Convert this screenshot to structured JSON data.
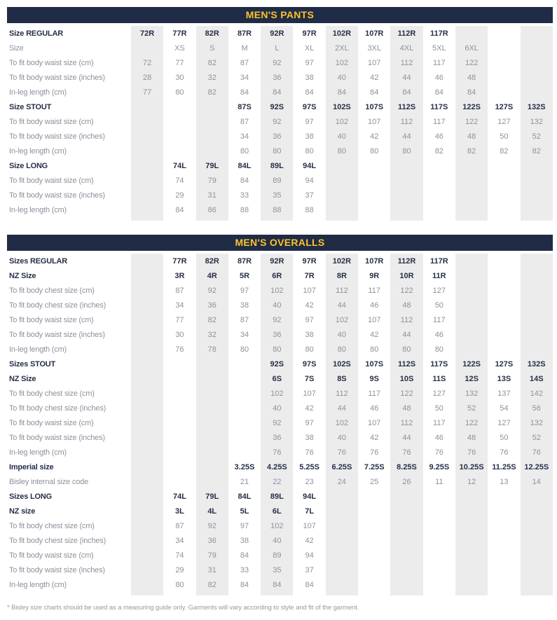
{
  "page": {
    "footnote": "* Bisley size charts should be used as a measuring guide only. Garments will vary according to style and fit of the garment."
  },
  "colors": {
    "header_bg": "#202b46",
    "header_text": "#fcc32b",
    "bold_text": "#272f48",
    "muted_text": "#8d929c",
    "column_stripe": "#ececec"
  },
  "tables": [
    {
      "title": "MEN'S PANTS",
      "rows": [
        {
          "label": "Size REGULAR",
          "bold": true,
          "cells": [
            "72R",
            "77R",
            "82R",
            "87R",
            "92R",
            "97R",
            "102R",
            "107R",
            "112R",
            "117R",
            "",
            "",
            ""
          ]
        },
        {
          "label": "Size",
          "bold": false,
          "cells": [
            "",
            "XS",
            "S",
            "M",
            "L",
            "XL",
            "2XL",
            "3XL",
            "4XL",
            "5XL",
            "6XL",
            "",
            ""
          ]
        },
        {
          "label": "To fit body waist size (cm)",
          "bold": false,
          "cells": [
            "72",
            "77",
            "82",
            "87",
            "92",
            "97",
            "102",
            "107",
            "112",
            "117",
            "122",
            "",
            ""
          ]
        },
        {
          "label": "To fit body waist size (inches)",
          "bold": false,
          "cells": [
            "28",
            "30",
            "32",
            "34",
            "36",
            "38",
            "40",
            "42",
            "44",
            "46",
            "48",
            "",
            ""
          ]
        },
        {
          "label": "In-leg length (cm)",
          "bold": false,
          "cells": [
            "77",
            "80",
            "82",
            "84",
            "84",
            "84",
            "84",
            "84",
            "84",
            "84",
            "84",
            "",
            ""
          ]
        },
        {
          "label": "Size STOUT",
          "bold": true,
          "cells": [
            "",
            "",
            "",
            "87S",
            "92S",
            "97S",
            "102S",
            "107S",
            "112S",
            "117S",
            "122S",
            "127S",
            "132S"
          ]
        },
        {
          "label": "To fit body waist size (cm)",
          "bold": false,
          "cells": [
            "",
            "",
            "",
            "87",
            "92",
            "97",
            "102",
            "107",
            "112",
            "117",
            "122",
            "127",
            "132"
          ]
        },
        {
          "label": "To fit body waist size (inches)",
          "bold": false,
          "cells": [
            "",
            "",
            "",
            "34",
            "36",
            "38",
            "40",
            "42",
            "44",
            "46",
            "48",
            "50",
            "52"
          ]
        },
        {
          "label": "In-leg length (cm)",
          "bold": false,
          "cells": [
            "",
            "",
            "",
            "80",
            "80",
            "80",
            "80",
            "80",
            "80",
            "82",
            "82",
            "82",
            "82"
          ]
        },
        {
          "label": "Size LONG",
          "bold": true,
          "cells": [
            "",
            "74L",
            "79L",
            "84L",
            "89L",
            "94L",
            "",
            "",
            "",
            "",
            "",
            "",
            ""
          ]
        },
        {
          "label": "To fit body waist size (cm)",
          "bold": false,
          "cells": [
            "",
            "74",
            "79",
            "84",
            "89",
            "94",
            "",
            "",
            "",
            "",
            "",
            "",
            ""
          ]
        },
        {
          "label": "To fit body waist size (inches)",
          "bold": false,
          "cells": [
            "",
            "29",
            "31",
            "33",
            "35",
            "37",
            "",
            "",
            "",
            "",
            "",
            "",
            ""
          ]
        },
        {
          "label": "In-leg length (cm)",
          "bold": false,
          "cells": [
            "",
            "84",
            "86",
            "88",
            "88",
            "88",
            "",
            "",
            "",
            "",
            "",
            "",
            ""
          ]
        }
      ]
    },
    {
      "title": "MEN'S OVERALLS",
      "rows": [
        {
          "label": "Sizes REGULAR",
          "bold": true,
          "cells": [
            "",
            "77R",
            "82R",
            "87R",
            "92R",
            "97R",
            "102R",
            "107R",
            "112R",
            "117R",
            "",
            "",
            ""
          ]
        },
        {
          "label": "NZ Size",
          "bold": true,
          "cells": [
            "",
            "3R",
            "4R",
            "5R",
            "6R",
            "7R",
            "8R",
            "9R",
            "10R",
            "11R",
            "",
            "",
            ""
          ]
        },
        {
          "label": "To fit body chest size (cm)",
          "bold": false,
          "cells": [
            "",
            "87",
            "92",
            "97",
            "102",
            "107",
            "112",
            "117",
            "122",
            "127",
            "",
            "",
            ""
          ]
        },
        {
          "label": "To fit body chest size (inches)",
          "bold": false,
          "cells": [
            "",
            "34",
            "36",
            "38",
            "40",
            "42",
            "44",
            "46",
            "48",
            "50",
            "",
            "",
            ""
          ]
        },
        {
          "label": "To fit body waist size (cm)",
          "bold": false,
          "cells": [
            "",
            "77",
            "82",
            "87",
            "92",
            "97",
            "102",
            "107",
            "112",
            "117",
            "",
            "",
            ""
          ]
        },
        {
          "label": "To fit body waist size (inches)",
          "bold": false,
          "cells": [
            "",
            "30",
            "32",
            "34",
            "36",
            "38",
            "40",
            "42",
            "44",
            "46",
            "",
            "",
            ""
          ]
        },
        {
          "label": "In-leg length (cm)",
          "bold": false,
          "cells": [
            "",
            "76",
            "78",
            "80",
            "80",
            "80",
            "80",
            "80",
            "80",
            "80",
            "",
            "",
            ""
          ]
        },
        {
          "label": "Sizes STOUT",
          "bold": true,
          "cells": [
            "",
            "",
            "",
            "",
            "92S",
            "97S",
            "102S",
            "107S",
            "112S",
            "117S",
            "122S",
            "127S",
            "132S"
          ]
        },
        {
          "label": "NZ Size",
          "bold": true,
          "cells": [
            "",
            "",
            "",
            "",
            "6S",
            "7S",
            "8S",
            "9S",
            "10S",
            "11S",
            "12S",
            "13S",
            "14S"
          ]
        },
        {
          "label": "To fit body chest size (cm)",
          "bold": false,
          "cells": [
            "",
            "",
            "",
            "",
            "102",
            "107",
            "112",
            "117",
            "122",
            "127",
            "132",
            "137",
            "142"
          ]
        },
        {
          "label": "To fit body chest size (inches)",
          "bold": false,
          "cells": [
            "",
            "",
            "",
            "",
            "40",
            "42",
            "44",
            "46",
            "48",
            "50",
            "52",
            "54",
            "56"
          ]
        },
        {
          "label": "To fit body waist size (cm)",
          "bold": false,
          "cells": [
            "",
            "",
            "",
            "",
            "92",
            "97",
            "102",
            "107",
            "112",
            "117",
            "122",
            "127",
            "132"
          ]
        },
        {
          "label": "To fit body waist size (inches)",
          "bold": false,
          "cells": [
            "",
            "",
            "",
            "",
            "36",
            "38",
            "40",
            "42",
            "44",
            "46",
            "48",
            "50",
            "52"
          ]
        },
        {
          "label": "In-leg length (cm)",
          "bold": false,
          "cells": [
            "",
            "",
            "",
            "",
            "76",
            "76",
            "76",
            "76",
            "76",
            "76",
            "76",
            "76",
            "76"
          ]
        },
        {
          "label": "Imperial size",
          "bold": true,
          "cells": [
            "",
            "",
            "",
            "3.25S",
            "4.25S",
            "5.25S",
            "6.25S",
            "7.25S",
            "8.25S",
            "9.25S",
            "10.25S",
            "11.25S",
            "12.25S"
          ]
        },
        {
          "label": "Bisley internal size code",
          "bold": false,
          "cells": [
            "",
            "",
            "",
            "21",
            "22",
            "23",
            "24",
            "25",
            "26",
            "11",
            "12",
            "13",
            "14"
          ]
        },
        {
          "label": "Sizes LONG",
          "bold": true,
          "cells": [
            "",
            "74L",
            "79L",
            "84L",
            "89L",
            "94L",
            "",
            "",
            "",
            "",
            "",
            "",
            ""
          ]
        },
        {
          "label": "NZ size",
          "bold": true,
          "cells": [
            "",
            "3L",
            "4L",
            "5L",
            "6L",
            "7L",
            "",
            "",
            "",
            "",
            "",
            "",
            ""
          ]
        },
        {
          "label": "To fit body chest size (cm)",
          "bold": false,
          "cells": [
            "",
            "87",
            "92",
            "97",
            "102",
            "107",
            "",
            "",
            "",
            "",
            "",
            "",
            ""
          ]
        },
        {
          "label": "To fit body chest size (inches)",
          "bold": false,
          "cells": [
            "",
            "34",
            "36",
            "38",
            "40",
            "42",
            "",
            "",
            "",
            "",
            "",
            "",
            ""
          ]
        },
        {
          "label": "To fit body waist size (cm)",
          "bold": false,
          "cells": [
            "",
            "74",
            "79",
            "84",
            "89",
            "94",
            "",
            "",
            "",
            "",
            "",
            "",
            ""
          ]
        },
        {
          "label": "To fit body waist size (inches)",
          "bold": false,
          "cells": [
            "",
            "29",
            "31",
            "33",
            "35",
            "37",
            "",
            "",
            "",
            "",
            "",
            "",
            ""
          ]
        },
        {
          "label": "In-leg length (cm)",
          "bold": false,
          "cells": [
            "",
            "80",
            "82",
            "84",
            "84",
            "84",
            "",
            "",
            "",
            "",
            "",
            "",
            ""
          ]
        }
      ]
    }
  ]
}
